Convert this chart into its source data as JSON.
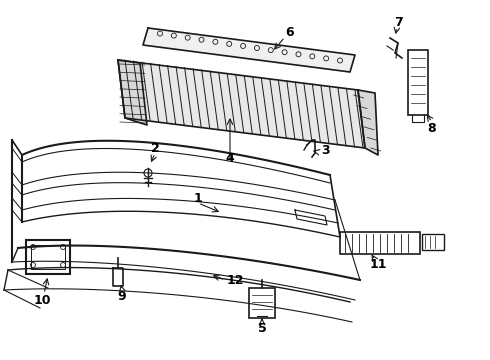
{
  "bg_color": "#ffffff",
  "line_color": "#1a1a1a",
  "label_color": "#000000",
  "label_fontsize": 9,
  "label_fontweight": "bold",
  "fig_width": 4.9,
  "fig_height": 3.6,
  "dpi": 100
}
